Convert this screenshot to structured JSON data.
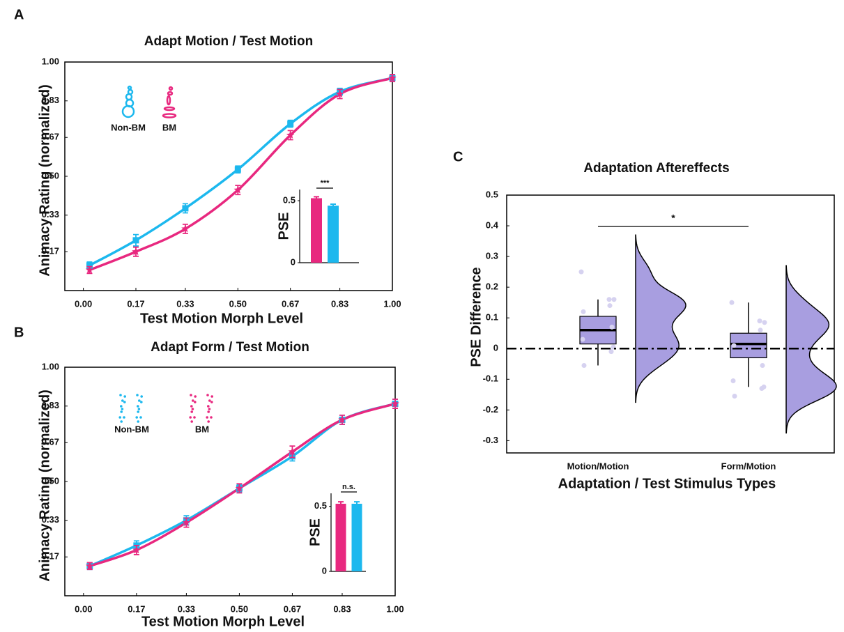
{
  "chart_data": [
    {
      "type": "line",
      "panel_label": "A",
      "title": "Adapt Motion / Test Motion",
      "x_label": "Test Motion Morph Level",
      "y_label": "Animacy Rating (normalized)",
      "x": [
        0.02,
        0.17,
        0.33,
        0.5,
        0.67,
        0.83,
        1.0
      ],
      "series": [
        {
          "name": "Non-BM",
          "color": "#1cb8ee",
          "marker": "square",
          "values": [
            0.11,
            0.22,
            0.36,
            0.53,
            0.73,
            0.87,
            0.93
          ],
          "errors": [
            0.015,
            0.025,
            0.02,
            0.015,
            0.015,
            0.015,
            0.015
          ]
        },
        {
          "name": "BM",
          "color": "#e8287f",
          "marker": "star",
          "values": [
            0.09,
            0.17,
            0.27,
            0.44,
            0.68,
            0.86,
            0.93
          ],
          "errors": [
            0.015,
            0.02,
            0.02,
            0.02,
            0.02,
            0.02,
            0.015
          ]
        }
      ],
      "xlim": [
        -0.06,
        1.0
      ],
      "xticks": [
        {
          "value": 0,
          "label": "0.00"
        },
        {
          "value": 0.17,
          "label": "0.17"
        },
        {
          "value": 0.33,
          "label": "0.33"
        },
        {
          "value": 0.5,
          "label": "0.50"
        },
        {
          "value": 0.67,
          "label": "0.67"
        },
        {
          "value": 0.83,
          "label": "0.83"
        },
        {
          "value": 1.0,
          "label": "1.00"
        }
      ],
      "ylim": [
        0,
        1
      ],
      "yticks": [
        {
          "value": 0.17,
          "label": "0.17"
        },
        {
          "value": 0.33,
          "label": "0.33"
        },
        {
          "value": 0.5,
          "label": "0.50"
        },
        {
          "value": 0.67,
          "label": "0.67"
        },
        {
          "value": 0.83,
          "label": "0.83"
        },
        {
          "value": 1.0,
          "label": "1.00"
        }
      ],
      "inset": {
        "type": "bar",
        "y_label": "PSE",
        "categories": [
          null,
          null
        ],
        "values": [
          0.52,
          0.46
        ],
        "errors": [
          0.012,
          0.012
        ],
        "colors": [
          "#e8287f",
          "#1cb8ee"
        ],
        "ylim": [
          0,
          0.59
        ],
        "yticks": [
          0,
          0.5
        ],
        "annotation": "***"
      }
    },
    {
      "type": "line",
      "panel_label": "B",
      "title": "Adapt Form / Test Motion",
      "x_label": "Test Motion Morph Level",
      "y_label": "Animacy Rating (normalized)",
      "x": [
        0.02,
        0.17,
        0.33,
        0.5,
        0.67,
        0.83,
        1.0
      ],
      "series": [
        {
          "name": "Non-BM",
          "color": "#1cb8ee",
          "marker": "square",
          "values": [
            0.13,
            0.22,
            0.33,
            0.47,
            0.61,
            0.77,
            0.84
          ],
          "errors": [
            0.015,
            0.02,
            0.02,
            0.015,
            0.02,
            0.02,
            0.02
          ]
        },
        {
          "name": "BM",
          "color": "#e8287f",
          "marker": "star",
          "values": [
            0.13,
            0.2,
            0.32,
            0.47,
            0.63,
            0.77,
            0.84
          ],
          "errors": [
            0.015,
            0.02,
            0.02,
            0.02,
            0.025,
            0.02,
            0.02
          ]
        }
      ],
      "xlim": [
        -0.06,
        1.0
      ],
      "xticks": [
        {
          "value": 0,
          "label": "0.00"
        },
        {
          "value": 0.17,
          "label": "0.17"
        },
        {
          "value": 0.33,
          "label": "0.33"
        },
        {
          "value": 0.5,
          "label": "0.50"
        },
        {
          "value": 0.67,
          "label": "0.67"
        },
        {
          "value": 0.83,
          "label": "0.83"
        },
        {
          "value": 1.0,
          "label": "1.00"
        }
      ],
      "ylim": [
        0,
        1
      ],
      "yticks": [
        {
          "value": 0.17,
          "label": "0.17"
        },
        {
          "value": 0.33,
          "label": "0.33"
        },
        {
          "value": 0.5,
          "label": "0.50"
        },
        {
          "value": 0.67,
          "label": "0.67"
        },
        {
          "value": 0.83,
          "label": "0.83"
        },
        {
          "value": 1.0,
          "label": "1.00"
        }
      ],
      "inset": {
        "type": "bar",
        "y_label": "PSE",
        "categories": [
          null,
          null
        ],
        "values": [
          0.52,
          0.52
        ],
        "errors": [
          0.015,
          0.015
        ],
        "colors": [
          "#e8287f",
          "#1cb8ee"
        ],
        "ylim": [
          0,
          0.6
        ],
        "yticks": [
          0,
          0.5
        ],
        "annotation": "n.s."
      }
    },
    {
      "type": "raincloud",
      "panel_label": "C",
      "title": "Adaptation Aftereffects",
      "x_label": "Adaptation / Test Stimulus Types",
      "y_label": "PSE Difference",
      "categories": [
        "Motion/Motion",
        "Form/Motion"
      ],
      "color": "#a89ee0",
      "point_color": "#d6d2f0",
      "boxes": [
        {
          "low": -0.055,
          "q1": 0.015,
          "median": 0.06,
          "q3": 0.105,
          "high": 0.16
        },
        {
          "low": -0.125,
          "q1": -0.03,
          "median": 0.015,
          "q3": 0.05,
          "high": 0.15
        }
      ],
      "points": [
        [
          0.25,
          0.16,
          0.16,
          0.14,
          0.12,
          0.07,
          0.03,
          0.005,
          -0.01,
          -0.055
        ],
        [
          0.15,
          0.09,
          0.085,
          0.06,
          0.01,
          -0.055,
          -0.105,
          -0.125,
          -0.13,
          -0.155
        ]
      ],
      "reference_line": 0,
      "significance": "*",
      "ylim": [
        -0.34,
        0.5
      ],
      "yticks": [
        0.5,
        0.4,
        0.3,
        0.2,
        0.1,
        0,
        -0.1,
        -0.2,
        -0.3
      ]
    }
  ]
}
